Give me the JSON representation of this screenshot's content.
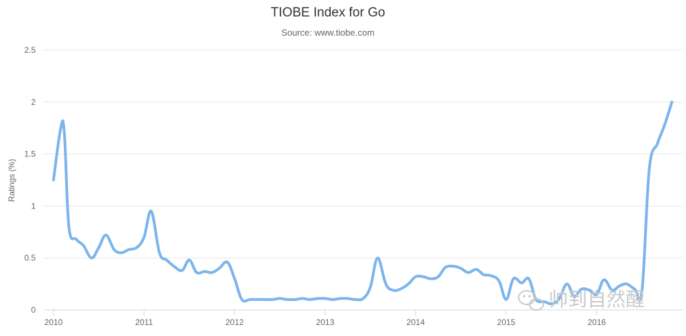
{
  "chart_data": {
    "type": "line",
    "title": "TIOBE Index for Go",
    "subtitle": "Source: www.tiobe.com",
    "xlabel": "",
    "ylabel": "Ratings (%)",
    "xlim": [
      2010.0,
      2016.88
    ],
    "ylim": [
      0,
      2.5
    ],
    "x_ticks": [
      "2010",
      "2011",
      "2012",
      "2013",
      "2014",
      "2015",
      "2016"
    ],
    "y_ticks": [
      "0",
      "0.5",
      "1",
      "1.5",
      "2",
      "2.5"
    ],
    "grid": true,
    "legend": "none",
    "series": [
      {
        "color": "#7cb5ec",
        "x": [
          2010.0,
          2010.08,
          2010.12,
          2010.17,
          2010.25,
          2010.33,
          2010.42,
          2010.5,
          2010.58,
          2010.67,
          2010.75,
          2010.83,
          2010.92,
          2011.0,
          2011.08,
          2011.17,
          2011.25,
          2011.33,
          2011.42,
          2011.5,
          2011.58,
          2011.67,
          2011.75,
          2011.83,
          2011.92,
          2012.0,
          2012.08,
          2012.17,
          2012.25,
          2012.33,
          2012.42,
          2012.5,
          2012.58,
          2012.67,
          2012.75,
          2012.83,
          2012.92,
          2013.0,
          2013.08,
          2013.17,
          2013.25,
          2013.33,
          2013.42,
          2013.5,
          2013.58,
          2013.67,
          2013.75,
          2013.83,
          2013.92,
          2014.0,
          2014.08,
          2014.17,
          2014.25,
          2014.33,
          2014.42,
          2014.5,
          2014.58,
          2014.67,
          2014.75,
          2014.83,
          2014.92,
          2015.0,
          2015.08,
          2015.17,
          2015.25,
          2015.33,
          2015.42,
          2015.5,
          2015.58,
          2015.67,
          2015.75,
          2015.83,
          2015.92,
          2016.0,
          2016.08,
          2016.17,
          2016.25,
          2016.33,
          2016.42,
          2016.5,
          2016.58,
          2016.67,
          2016.75,
          2016.83
        ],
        "values": [
          1.25,
          1.75,
          1.7,
          0.8,
          0.68,
          0.62,
          0.5,
          0.6,
          0.72,
          0.58,
          0.55,
          0.58,
          0.6,
          0.7,
          0.95,
          0.55,
          0.48,
          0.42,
          0.38,
          0.48,
          0.36,
          0.37,
          0.36,
          0.4,
          0.46,
          0.3,
          0.1,
          0.1,
          0.1,
          0.1,
          0.1,
          0.11,
          0.1,
          0.1,
          0.11,
          0.1,
          0.11,
          0.11,
          0.1,
          0.11,
          0.11,
          0.1,
          0.11,
          0.22,
          0.5,
          0.25,
          0.19,
          0.2,
          0.25,
          0.32,
          0.32,
          0.3,
          0.32,
          0.41,
          0.42,
          0.4,
          0.36,
          0.39,
          0.34,
          0.33,
          0.28,
          0.1,
          0.3,
          0.26,
          0.3,
          0.1,
          0.08,
          0.06,
          0.1,
          0.25,
          0.13,
          0.2,
          0.19,
          0.15,
          0.29,
          0.19,
          0.23,
          0.25,
          0.2,
          0.18,
          1.35,
          1.6,
          1.78,
          2.0
        ]
      }
    ]
  },
  "watermark": {
    "text": "帅到自然醒",
    "icon": "wechat-icon"
  }
}
